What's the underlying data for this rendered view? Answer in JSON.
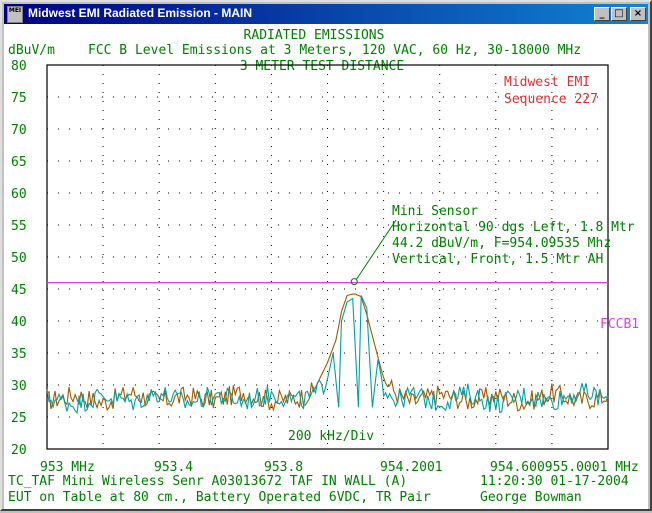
{
  "window": {
    "title": "Midwest EMI Radiated Emission - MAIN",
    "icon_label": "MEI",
    "buttons": {
      "minimize": "_",
      "maximize": "□",
      "close": "×"
    }
  },
  "header": {
    "title": "RADIATED EMISSIONS",
    "unit": "dBuV/m",
    "subtitle": "FCC B Level Emissions at 3 Meters, 120 VAC, 60 Hz, 30-18000 MHz",
    "distance": "3 METER TEST DISTANCE"
  },
  "brand": {
    "line1": "Midwest EMI",
    "line2": "Sequence 227"
  },
  "annotation": {
    "line1": "Mini Sensor",
    "line2": "Horizontal 90 dgs Left, 1.8 Mtr",
    "line3": "44.2 dBuV/m, F=954.09535 Mhz",
    "line4": "Vertical, Front, 1.5 Mtr AH"
  },
  "limit_label": "FCCB1",
  "div_label": "200 kHz/Div",
  "footer": {
    "line1_left": "TC_TAF Mini Wireless Senr  A03013672 TAF IN WALL (A)",
    "line1_right": "11:20:30   01-17-2004",
    "line2_left": "EUT on Table at 80 cm., Battery Operated 6VDC, TR Pair",
    "line2_right": "George Bowman"
  },
  "colors": {
    "title_green": "#008000",
    "brand_red": "#e03030",
    "limit_magenta": "#e040e0",
    "trace_teal": "#00a0a0",
    "trace_brown": "#a05a00",
    "grid_dots": "#000000"
  },
  "chart_data": {
    "type": "line",
    "xlabel": "",
    "ylabel": "dBuV/m",
    "xlim": [
      953.0,
      955.0
    ],
    "ylim": [
      20,
      80
    ],
    "yticks": [
      80,
      75,
      70,
      65,
      60,
      55,
      50,
      45,
      40,
      35,
      30,
      25,
      20
    ],
    "xtick_labels": [
      "953 MHz",
      "953.4",
      "953.8",
      "954.2001",
      "954.600955.0001 MHz"
    ],
    "limit_line": {
      "name": "FCCB1",
      "value": 46.0
    },
    "marker": {
      "x": 954.09535,
      "y": 44.2
    },
    "series": [
      {
        "color": "#a05a00",
        "x": [
          953.0,
          953.1,
          953.2,
          953.3,
          953.4,
          953.5,
          953.6,
          953.7,
          953.8,
          953.9,
          953.95,
          954.0,
          954.03,
          954.05,
          954.07,
          954.09,
          954.1,
          954.12,
          954.14,
          954.17,
          954.2,
          954.25,
          954.3,
          954.4,
          954.5,
          954.6,
          954.7,
          954.8,
          954.9,
          955.0
        ],
        "y": [
          27.5,
          28.5,
          27.2,
          28.8,
          27.4,
          28.3,
          27.6,
          28.9,
          27.5,
          28.0,
          29.0,
          33.5,
          37.0,
          41.5,
          44.0,
          44.2,
          44.2,
          43.8,
          41.0,
          36.0,
          31.0,
          28.5,
          27.3,
          28.6,
          27.5,
          28.4,
          27.2,
          28.7,
          27.6,
          28.2
        ]
      },
      {
        "color": "#00a0a0",
        "x": [
          953.0,
          953.1,
          953.2,
          953.3,
          953.4,
          953.5,
          953.6,
          953.7,
          953.8,
          953.9,
          953.95,
          954.0,
          954.02,
          954.04,
          954.05,
          954.07,
          954.09,
          954.11,
          954.12,
          954.14,
          954.16,
          954.18,
          954.2,
          954.25,
          954.3,
          954.4,
          954.5,
          954.6,
          954.7,
          954.8,
          954.9,
          955.0
        ],
        "y": [
          28.0,
          27.0,
          28.4,
          27.3,
          28.8,
          27.1,
          28.5,
          27.4,
          28.6,
          27.5,
          28.2,
          31.0,
          35.0,
          26.5,
          40.0,
          43.0,
          43.5,
          26.5,
          44.0,
          42.0,
          26.5,
          34.0,
          29.5,
          27.6,
          28.5,
          27.2,
          28.7,
          27.0,
          28.4,
          27.5,
          28.9,
          27.8
        ]
      }
    ]
  }
}
